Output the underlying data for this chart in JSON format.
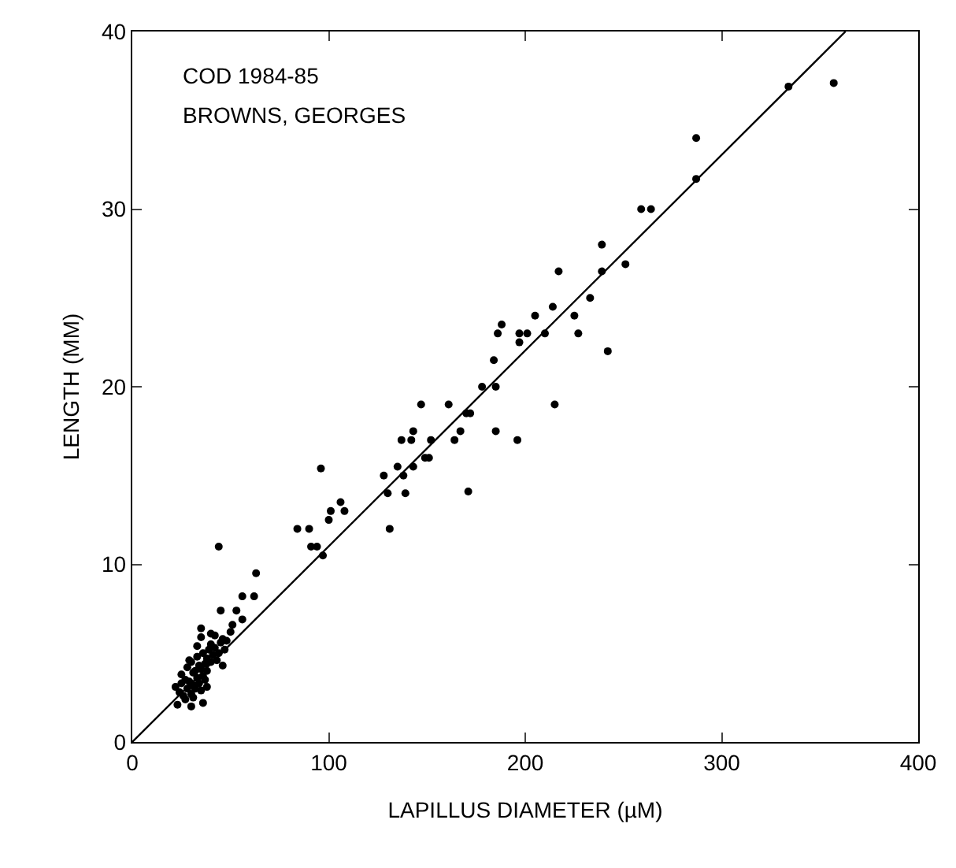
{
  "chart_data": {
    "type": "scatter",
    "xlabel": "LAPILLUS DIAMETER (µM)",
    "ylabel": "LENGTH (MM)",
    "annotations": [
      "COD 1984-85",
      "BROWNS, GEORGES"
    ],
    "xlim": [
      0,
      400
    ],
    "xticks": [
      0,
      100,
      200,
      300,
      400
    ],
    "ylim": [
      0,
      40
    ],
    "yticks": [
      0,
      10,
      20,
      30,
      40
    ],
    "series": [
      {
        "color": "#000000",
        "x": [
          334,
          357,
          287,
          287,
          259,
          264,
          251,
          239,
          217,
          239,
          214,
          233,
          205,
          225,
          188,
          186,
          197,
          201,
          210,
          227,
          197,
          242,
          184,
          178,
          185,
          215,
          147,
          161,
          170,
          172,
          143,
          167,
          185,
          137,
          142,
          152,
          164,
          196,
          149,
          151,
          135,
          143,
          128,
          138,
          96,
          130,
          139,
          171,
          106,
          101,
          108,
          100,
          84,
          90,
          131,
          91,
          94,
          97,
          44,
          63,
          56,
          62,
          45,
          53,
          56,
          51,
          35,
          40,
          35,
          23,
          30,
          36,
          22,
          24,
          25,
          26,
          27,
          28,
          28,
          29,
          30,
          30,
          31,
          31,
          32,
          32,
          33,
          33,
          34,
          34,
          35,
          36,
          36,
          37,
          37,
          38,
          38,
          39,
          40,
          40,
          41,
          42,
          43,
          44,
          45,
          46,
          47,
          48,
          50,
          25,
          27,
          29,
          31,
          33,
          35,
          38,
          42,
          46
        ],
        "values": [
          36.9,
          37.1,
          34.0,
          31.7,
          30.0,
          30.0,
          26.9,
          28.0,
          26.5,
          26.5,
          24.5,
          25.0,
          24.0,
          24.0,
          23.5,
          23.0,
          23.0,
          23.0,
          23.0,
          23.0,
          22.5,
          22.0,
          21.5,
          20.0,
          20.0,
          19.0,
          19.0,
          19.0,
          18.5,
          18.5,
          17.5,
          17.5,
          17.5,
          17.0,
          17.0,
          17.0,
          17.0,
          17.0,
          16.0,
          16.0,
          15.5,
          15.5,
          15.0,
          15.0,
          15.4,
          14.0,
          14.0,
          14.1,
          13.5,
          13.0,
          13.0,
          12.5,
          12.0,
          12.0,
          12.0,
          11.0,
          11.0,
          10.5,
          11.0,
          9.5,
          8.2,
          8.2,
          7.4,
          7.4,
          6.9,
          6.6,
          6.4,
          6.1,
          5.9,
          2.1,
          2.0,
          2.2,
          3.1,
          2.8,
          3.3,
          2.6,
          3.5,
          3.0,
          4.2,
          3.4,
          2.7,
          4.5,
          3.2,
          3.9,
          4.0,
          3.0,
          3.6,
          4.8,
          3.3,
          4.3,
          4.1,
          3.7,
          5.0,
          4.4,
          3.5,
          4.7,
          4.0,
          5.2,
          4.5,
          5.5,
          4.9,
          5.3,
          4.6,
          5.0,
          5.6,
          5.8,
          5.2,
          5.7,
          6.2,
          3.8,
          2.4,
          4.6,
          2.5,
          5.4,
          2.9,
          3.1,
          6.0,
          4.3
        ]
      },
      {
        "type": "line",
        "color": "#000000",
        "x": [
          0,
          363
        ],
        "values": [
          0,
          40
        ],
        "marker": "none"
      }
    ]
  }
}
